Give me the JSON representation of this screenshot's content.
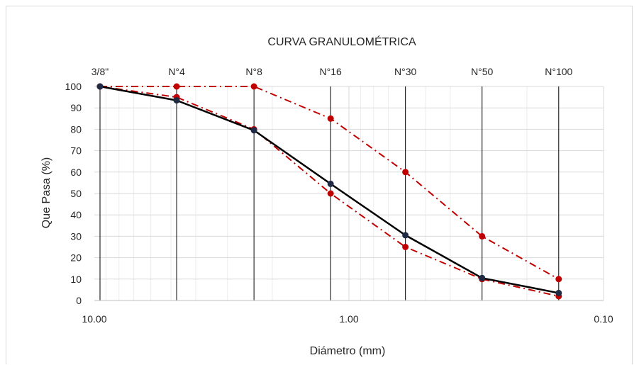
{
  "chart_data": {
    "type": "line",
    "title": "CURVA GRANULOMÉTRICA",
    "xlabel": "Diámetro (mm)",
    "ylabel": "Que Pasa (%)",
    "x_scale": "log",
    "x_reversed": true,
    "xlim": [
      10,
      0.1
    ],
    "ylim": [
      0,
      100
    ],
    "y_ticks": [
      0,
      10,
      20,
      30,
      40,
      50,
      60,
      70,
      80,
      90,
      100
    ],
    "x_ticks": [
      {
        "value": 10,
        "label": "10.00"
      },
      {
        "value": 1,
        "label": "1.00"
      },
      {
        "value": 0.1,
        "label": "0.10"
      }
    ],
    "sieves": [
      {
        "label": "3/8\"",
        "size": 9.5
      },
      {
        "label": "N°4",
        "size": 4.75
      },
      {
        "label": "N°8",
        "size": 2.36
      },
      {
        "label": "N°16",
        "size": 1.18
      },
      {
        "label": "N°30",
        "size": 0.6
      },
      {
        "label": "N°50",
        "size": 0.3
      },
      {
        "label": "N°100",
        "size": 0.15
      }
    ],
    "grid": true,
    "series": [
      {
        "values": [
          100,
          93.5,
          79.5,
          54.5,
          30.5,
          10.5,
          3.5
        ],
        "color": "#000000",
        "marker_color": "#1f2a44",
        "style": "solid"
      },
      {
        "values": [
          100,
          100,
          100,
          85,
          60,
          30,
          10
        ],
        "color": "#c00000",
        "marker_color": "#c00000",
        "style": "dashdot"
      },
      {
        "values": [
          100,
          95,
          80,
          50,
          25,
          10,
          2
        ],
        "color": "#c00000",
        "marker_color": "#c00000",
        "style": "dashdot"
      }
    ]
  }
}
